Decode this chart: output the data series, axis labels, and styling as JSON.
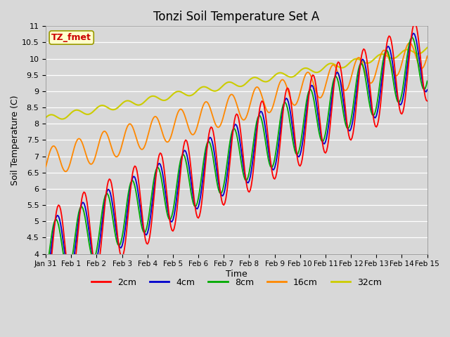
{
  "title": "Tonzi Soil Temperature Set A",
  "xlabel": "Time",
  "ylabel": "Soil Temperature (C)",
  "ylim": [
    4.0,
    11.0
  ],
  "yticks": [
    4.0,
    4.5,
    5.0,
    5.5,
    6.0,
    6.5,
    7.0,
    7.5,
    8.0,
    8.5,
    9.0,
    9.5,
    10.0,
    10.5,
    11.0
  ],
  "label_box": "TZ_fmet",
  "label_box_color": "#cc0000",
  "label_box_bg": "#ffffcc",
  "colors": {
    "2cm": "#ff0000",
    "4cm": "#0000cc",
    "8cm": "#00aa00",
    "16cm": "#ff8800",
    "32cm": "#cccc00"
  },
  "fig_bg": "#d8d8d8",
  "plot_bg": "#d8d8d8",
  "figsize": [
    6.4,
    4.8
  ],
  "dpi": 100,
  "xtick_labels": [
    "Jan 31",
    "Feb 1",
    "Feb 2",
    "Feb 3",
    "Feb 4",
    "Feb 5",
    "Feb 6",
    "Feb 7",
    "Feb 8",
    "Feb 9",
    "Feb 10",
    "Feb 11",
    "Feb 12",
    "Feb 13",
    "Feb 14",
    "Feb 15"
  ]
}
